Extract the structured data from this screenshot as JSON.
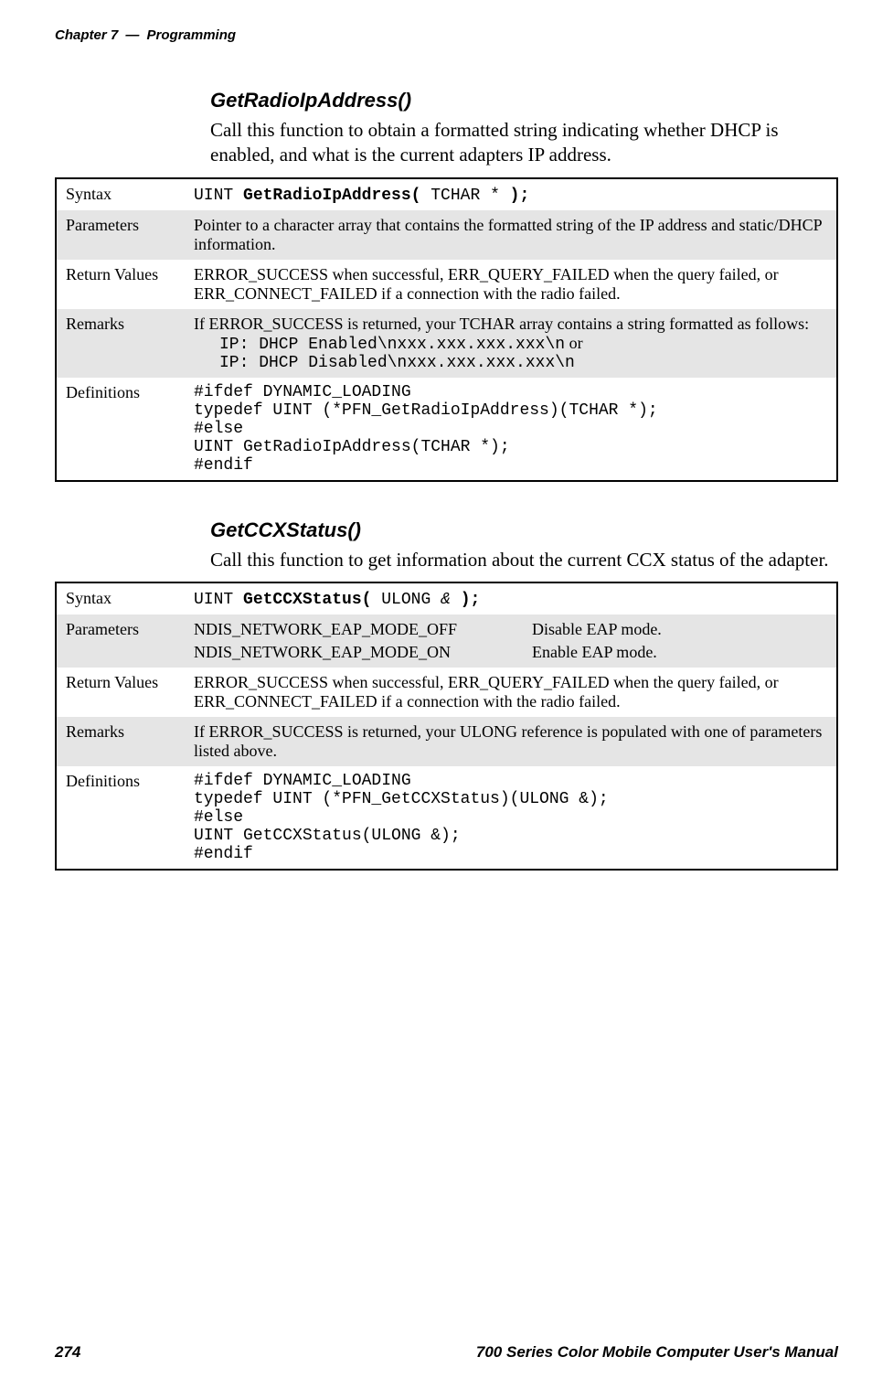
{
  "header": {
    "chapter": "Chapter 7",
    "title": "Programming",
    "dash": "—"
  },
  "section1": {
    "title": "GetRadioIpAddress()",
    "desc": "Call this function to obtain a formatted string indicating whether DHCP is enabled, and what is the current adapters IP address.",
    "syntax_label": "Syntax",
    "syntax_pre": "UINT ",
    "syntax_bold1": "GetRadioIpAddress(",
    "syntax_mid": " TCHAR * ",
    "syntax_bold2": ");",
    "parameters_label": "Parameters",
    "parameters_text": "Pointer to a character array that contains the formatted string of the IP address and static/DHCP information.",
    "return_label": "Return Values",
    "return_text": "ERROR_SUCCESS when successful, ERR_QUERY_FAILED when the query failed, or ERR_CONNECT_FAILED if a connection with the radio failed.",
    "remarks_label": "Remarks",
    "remarks_lead": "If ERROR_SUCCESS is returned, your TCHAR array contains a string formatted as follows:",
    "remarks_line1": "IP: DHCP Enabled\\nxxx.xxx.xxx.xxx\\n",
    "remarks_or": " or",
    "remarks_line2": "IP: DHCP Disabled\\nxxx.xxx.xxx.xxx\\n",
    "defs_label": "Definitions",
    "defs_code": "#ifdef DYNAMIC_LOADING\ntypedef UINT (*PFN_GetRadioIpAddress)(TCHAR *);\n#else\nUINT GetRadioIpAddress(TCHAR *);\n#endif"
  },
  "section2": {
    "title": "GetCCXStatus()",
    "desc": "Call this function to get information about the current CCX status of the adapter.",
    "syntax_label": "Syntax",
    "syntax_pre": "UINT ",
    "syntax_bold1": "GetCCXStatus(",
    "syntax_mid": " ULONG ",
    "syntax_amp": "&",
    "syntax_sp": " ",
    "syntax_bold2": ");",
    "parameters_label": "Parameters",
    "param1_name": "NDIS_NETWORK_EAP_MODE_OFF",
    "param1_desc": "Disable EAP mode.",
    "param2_name": "NDIS_NETWORK_EAP_MODE_ON",
    "param2_desc": "Enable EAP mode.",
    "return_label": "Return Values",
    "return_text": "ERROR_SUCCESS when successful, ERR_QUERY_FAILED when the query failed, or ERR_CONNECT_FAILED if a connection with the radio failed.",
    "remarks_label": "Remarks",
    "remarks_text": "If ERROR_SUCCESS is returned, your ULONG reference is populated with one of parameters listed above.",
    "defs_label": "Definitions",
    "defs_code": "#ifdef DYNAMIC_LOADING\ntypedef UINT (*PFN_GetCCXStatus)(ULONG &);\n#else\nUINT GetCCXStatus(ULONG &);\n#endif"
  },
  "footer": {
    "page": "274",
    "title": "700 Series Color Mobile Computer User's Manual"
  }
}
